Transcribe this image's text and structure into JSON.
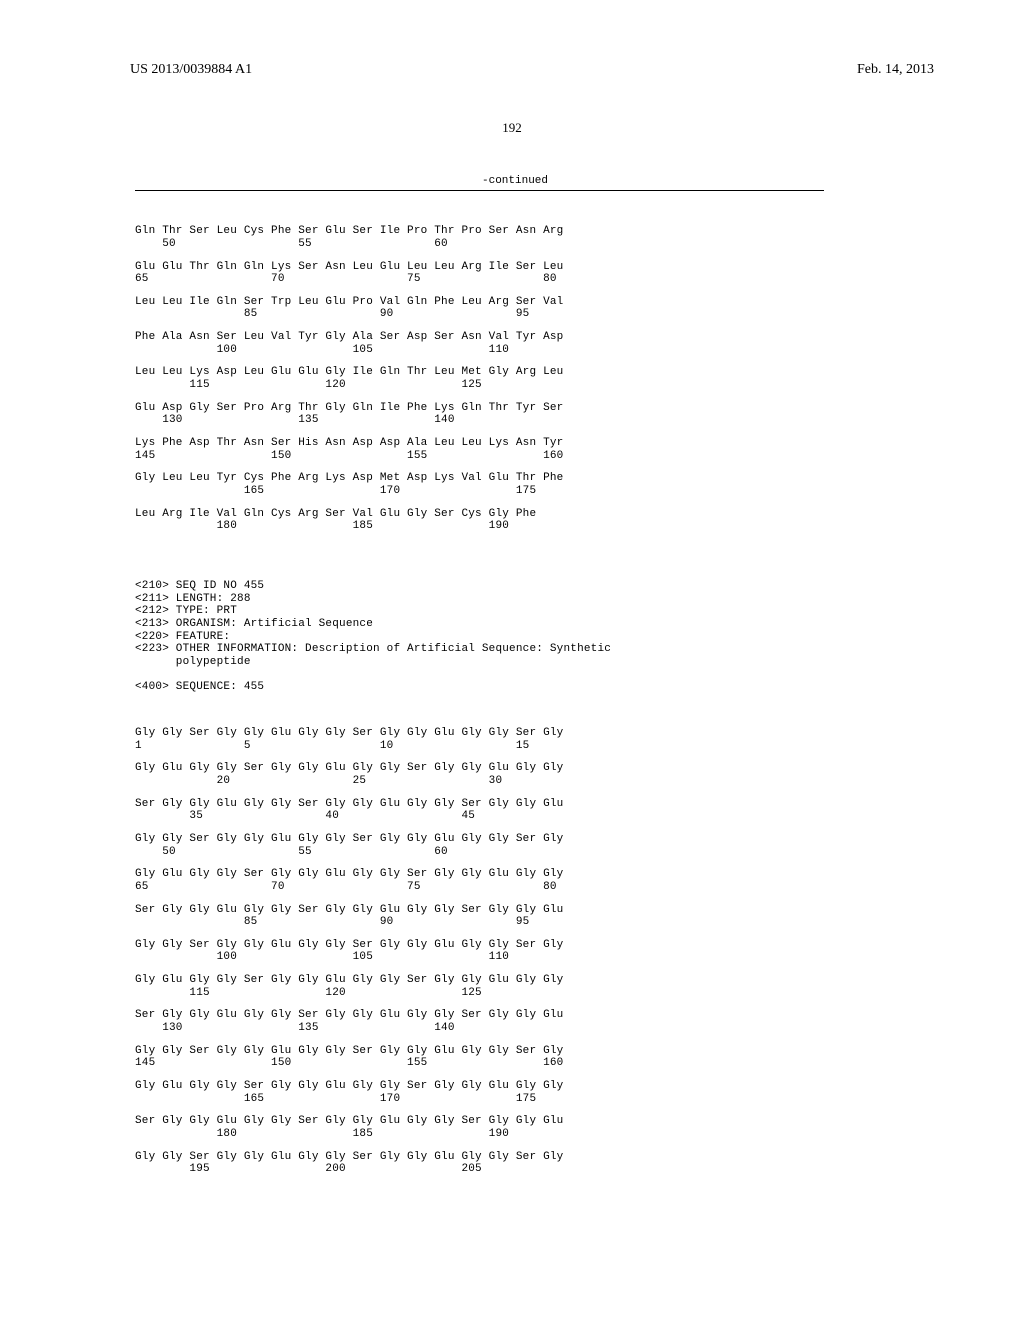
{
  "header": {
    "left": "US 2013/0039884 A1",
    "right": "Feb. 14, 2013",
    "pageNumber": "192",
    "continued": "-continued"
  },
  "seq454": {
    "rows": [
      {
        "aa": "Gln Thr Ser Leu Cys Phe Ser Glu Ser Ile Pro Thr Pro Ser Asn Arg",
        "nums": "    50                  55                  60"
      },
      {
        "aa": "Glu Glu Thr Gln Gln Lys Ser Asn Leu Glu Leu Leu Arg Ile Ser Leu",
        "nums": "65                  70                  75                  80"
      },
      {
        "aa": "Leu Leu Ile Gln Ser Trp Leu Glu Pro Val Gln Phe Leu Arg Ser Val",
        "nums": "                85                  90                  95"
      },
      {
        "aa": "Phe Ala Asn Ser Leu Val Tyr Gly Ala Ser Asp Ser Asn Val Tyr Asp",
        "nums": "            100                 105                 110"
      },
      {
        "aa": "Leu Leu Lys Asp Leu Glu Glu Gly Ile Gln Thr Leu Met Gly Arg Leu",
        "nums": "        115                 120                 125"
      },
      {
        "aa": "Glu Asp Gly Ser Pro Arg Thr Gly Gln Ile Phe Lys Gln Thr Tyr Ser",
        "nums": "    130                 135                 140"
      },
      {
        "aa": "Lys Phe Asp Thr Asn Ser His Asn Asp Asp Ala Leu Leu Lys Asn Tyr",
        "nums": "145                 150                 155                 160"
      },
      {
        "aa": "Gly Leu Leu Tyr Cys Phe Arg Lys Asp Met Asp Lys Val Glu Thr Phe",
        "nums": "                165                 170                 175"
      },
      {
        "aa": "Leu Arg Ile Val Gln Cys Arg Ser Val Glu Gly Ser Cys Gly Phe",
        "nums": "            180                 185                 190"
      }
    ]
  },
  "seq455meta": [
    "<210> SEQ ID NO 455",
    "<211> LENGTH: 288",
    "<212> TYPE: PRT",
    "<213> ORGANISM: Artificial Sequence",
    "<220> FEATURE:",
    "<223> OTHER INFORMATION: Description of Artificial Sequence: Synthetic",
    "      polypeptide",
    "",
    "<400> SEQUENCE: 455"
  ],
  "seq455": {
    "rows": [
      {
        "aa": "Gly Gly Ser Gly Gly Glu Gly Gly Ser Gly Gly Glu Gly Gly Ser Gly",
        "nums": "1               5                   10                  15"
      },
      {
        "aa": "Gly Glu Gly Gly Ser Gly Gly Glu Gly Gly Ser Gly Gly Glu Gly Gly",
        "nums": "            20                  25                  30"
      },
      {
        "aa": "Ser Gly Gly Glu Gly Gly Ser Gly Gly Glu Gly Gly Ser Gly Gly Glu",
        "nums": "        35                  40                  45"
      },
      {
        "aa": "Gly Gly Ser Gly Gly Glu Gly Gly Ser Gly Gly Glu Gly Gly Ser Gly",
        "nums": "    50                  55                  60"
      },
      {
        "aa": "Gly Glu Gly Gly Ser Gly Gly Glu Gly Gly Ser Gly Gly Glu Gly Gly",
        "nums": "65                  70                  75                  80"
      },
      {
        "aa": "Ser Gly Gly Glu Gly Gly Ser Gly Gly Glu Gly Gly Ser Gly Gly Glu",
        "nums": "                85                  90                  95"
      },
      {
        "aa": "Gly Gly Ser Gly Gly Glu Gly Gly Ser Gly Gly Glu Gly Gly Ser Gly",
        "nums": "            100                 105                 110"
      },
      {
        "aa": "Gly Glu Gly Gly Ser Gly Gly Glu Gly Gly Ser Gly Gly Glu Gly Gly",
        "nums": "        115                 120                 125"
      },
      {
        "aa": "Ser Gly Gly Glu Gly Gly Ser Gly Gly Glu Gly Gly Ser Gly Gly Glu",
        "nums": "    130                 135                 140"
      },
      {
        "aa": "Gly Gly Ser Gly Gly Glu Gly Gly Ser Gly Gly Glu Gly Gly Ser Gly",
        "nums": "145                 150                 155                 160"
      },
      {
        "aa": "Gly Glu Gly Gly Ser Gly Gly Glu Gly Gly Ser Gly Gly Glu Gly Gly",
        "nums": "                165                 170                 175"
      },
      {
        "aa": "Ser Gly Gly Glu Gly Gly Ser Gly Gly Glu Gly Gly Ser Gly Gly Glu",
        "nums": "            180                 185                 190"
      },
      {
        "aa": "Gly Gly Ser Gly Gly Glu Gly Gly Ser Gly Gly Glu Gly Gly Ser Gly",
        "nums": "        195                 200                 205"
      }
    ]
  }
}
